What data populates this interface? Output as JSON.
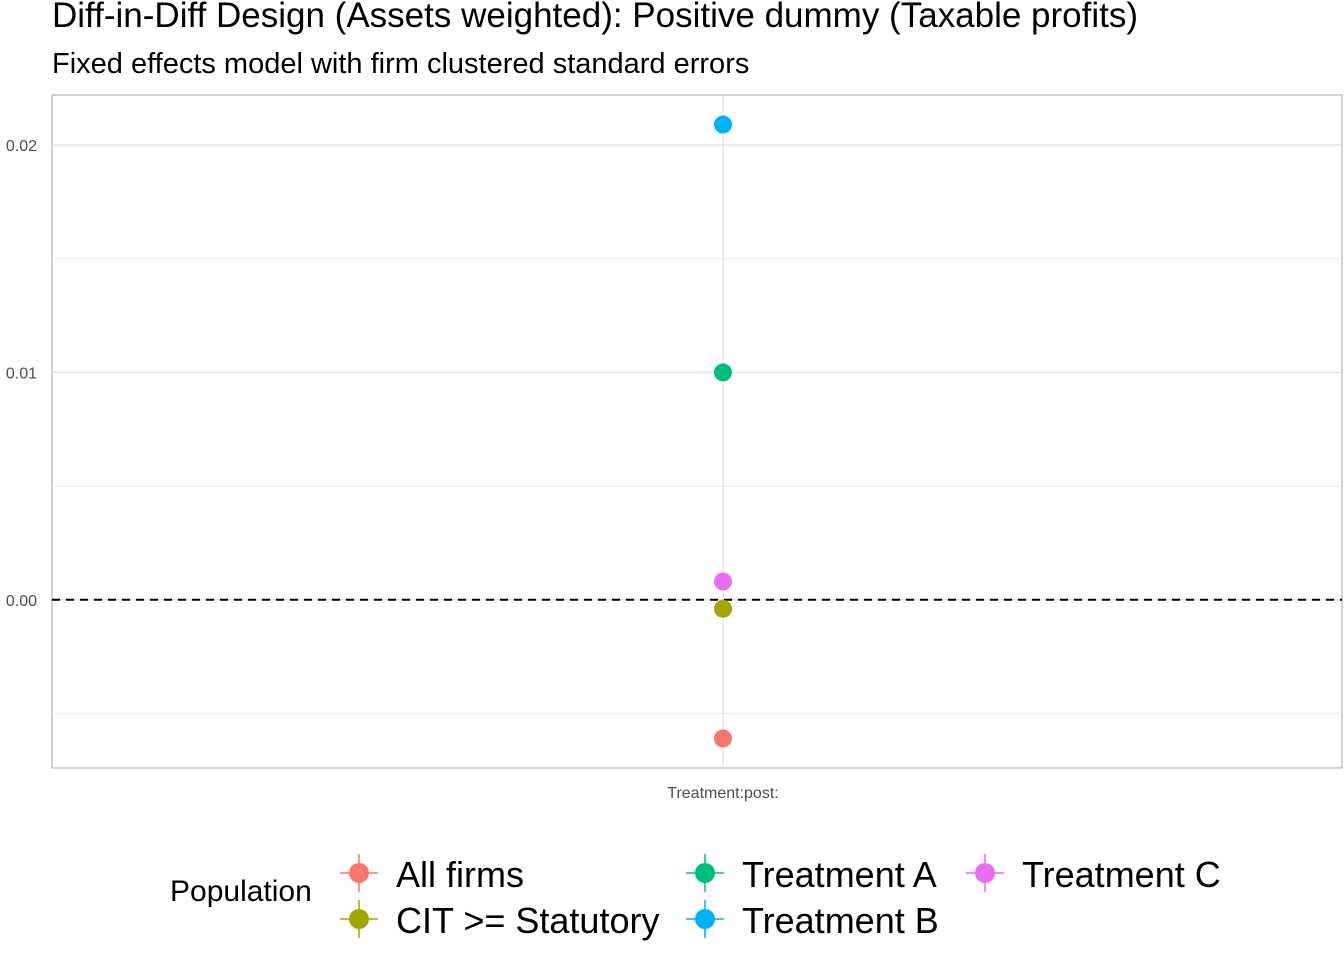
{
  "chart_data": {
    "type": "scatter",
    "title": "Diff-in-Diff Design (Assets weighted): Positive dummy (Taxable profits)",
    "subtitle": "Fixed effects model with firm clustered standard errors",
    "xlabel": "",
    "ylabel": "",
    "categories": [
      "Treatment:post:"
    ],
    "ylim": [
      -0.0074,
      0.0222
    ],
    "yticks": [
      0.0,
      0.01,
      0.02
    ],
    "ytick_labels": [
      "0.00",
      "0.01",
      "0.02"
    ],
    "grid": true,
    "reference_line": {
      "y": 0,
      "style": "dashed"
    },
    "legend": {
      "title": "Population",
      "placement": "bottom"
    },
    "series": [
      {
        "name": "All firms",
        "color": "#F8766D",
        "values": [
          -0.0061
        ]
      },
      {
        "name": "CIT >= Statutory",
        "color": "#A3A500",
        "values": [
          -0.0004
        ]
      },
      {
        "name": "Treatment A",
        "color": "#00BF7D",
        "values": [
          0.01
        ]
      },
      {
        "name": "Treatment B",
        "color": "#00B0F6",
        "values": [
          0.0209
        ]
      },
      {
        "name": "Treatment C",
        "color": "#E76BF3",
        "values": [
          0.0008
        ]
      }
    ]
  }
}
